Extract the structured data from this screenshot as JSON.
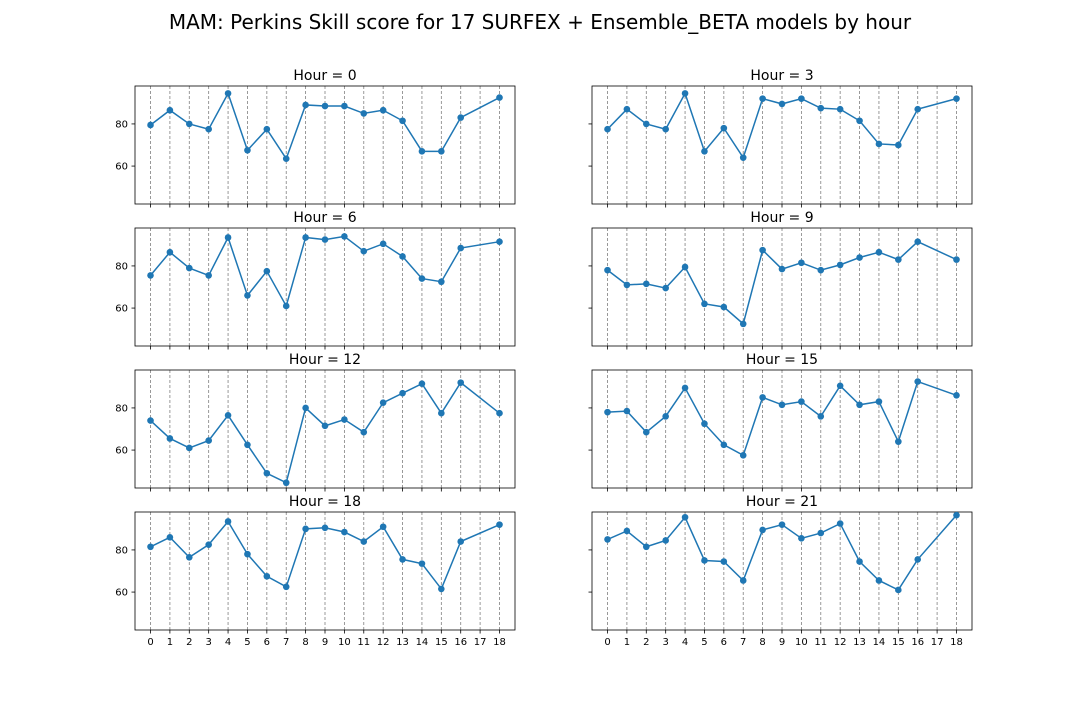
{
  "chart_data": {
    "type": "line",
    "title": "MAM: Perkins Skill score for 17 SURFEX + Ensemble_BETA models by hour",
    "x": [
      0,
      1,
      2,
      3,
      4,
      5,
      6,
      7,
      8,
      9,
      10,
      11,
      12,
      13,
      14,
      15,
      16,
      18
    ],
    "xticks": [
      0,
      1,
      2,
      3,
      4,
      5,
      6,
      7,
      8,
      9,
      10,
      11,
      12,
      13,
      14,
      15,
      16,
      17,
      18
    ],
    "xlim": [
      -0.8,
      18.8
    ],
    "ylim": [
      42,
      98
    ],
    "yticks": [
      60,
      80
    ],
    "grid": "vertical dashed at each x tick",
    "series": [
      {
        "name": "Hour = 0",
        "values": [
          79.5,
          86.5,
          80,
          77.5,
          94.5,
          67.5,
          77.5,
          63.5,
          89,
          88.5,
          88.5,
          85,
          86.5,
          81.5,
          67,
          67,
          83,
          92.5
        ]
      },
      {
        "name": "Hour = 3",
        "values": [
          77.5,
          87,
          80,
          77.5,
          94.5,
          67,
          78,
          64,
          92,
          89.5,
          92,
          87.5,
          87,
          81.5,
          70.5,
          70,
          87,
          92
        ]
      },
      {
        "name": "Hour = 6",
        "values": [
          75.5,
          86.5,
          79,
          75.5,
          93.5,
          66,
          77.5,
          61,
          93.5,
          92.5,
          94,
          87,
          90.5,
          84.5,
          74,
          72.5,
          88.5,
          91.5
        ]
      },
      {
        "name": "Hour = 9",
        "values": [
          78,
          71,
          71.5,
          69.5,
          79.5,
          62,
          60.5,
          52.5,
          87.5,
          78.5,
          81.5,
          78,
          80.5,
          84,
          86.5,
          83,
          91.5,
          83
        ]
      },
      {
        "name": "Hour = 12",
        "values": [
          74,
          65.5,
          61,
          64.5,
          76.5,
          62.5,
          49,
          44.5,
          80,
          71.5,
          74.5,
          68.5,
          82.5,
          87,
          91.5,
          77.5,
          92,
          77.5
        ]
      },
      {
        "name": "Hour = 15",
        "values": [
          78,
          78.5,
          68.5,
          76,
          89.5,
          72.5,
          62.5,
          57.5,
          85,
          81.5,
          83,
          76,
          90.5,
          81.5,
          83,
          64,
          92.5,
          86
        ]
      },
      {
        "name": "Hour = 18",
        "values": [
          81.5,
          86,
          76.5,
          82.5,
          93.5,
          78,
          67.5,
          62.5,
          90,
          90.5,
          88.5,
          84,
          91,
          75.5,
          73.5,
          61.5,
          84,
          92
        ]
      },
      {
        "name": "Hour = 21",
        "values": [
          85,
          89,
          81.5,
          84.5,
          95.5,
          75,
          74.5,
          65.5,
          89.5,
          92,
          85.5,
          88,
          92.5,
          74.5,
          65.5,
          61,
          75.5,
          96.5
        ]
      }
    ]
  }
}
